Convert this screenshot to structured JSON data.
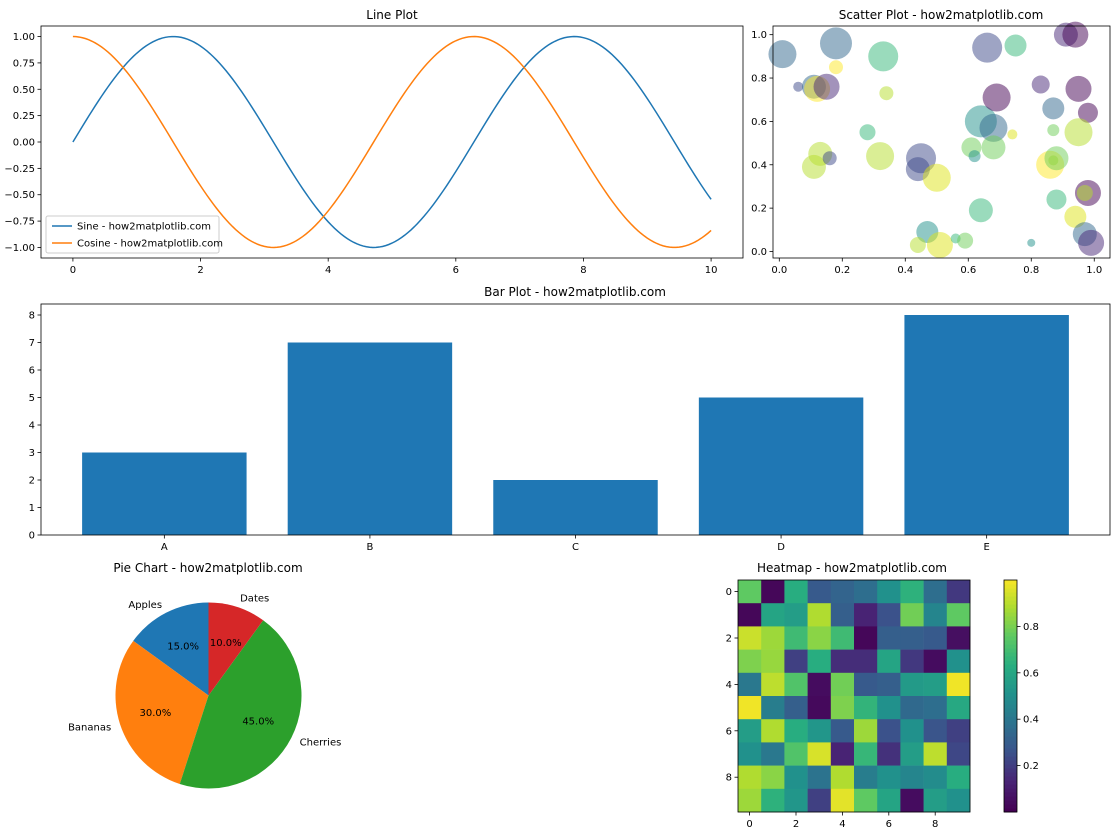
{
  "chart_data": [
    {
      "type": "line",
      "title": "Line Plot",
      "xlabel": "",
      "ylabel": "",
      "xlim": [
        -0.5,
        10.5
      ],
      "ylim": [
        -1.1,
        1.1
      ],
      "xticks": [
        0,
        2,
        4,
        6,
        8,
        10
      ],
      "xtick_labels": [
        "0",
        "2",
        "4",
        "6",
        "8",
        "10"
      ],
      "yticks": [
        -1.0,
        -0.75,
        -0.5,
        -0.25,
        0.0,
        0.25,
        0.5,
        0.75,
        1.0
      ],
      "ytick_labels": [
        "−1.00",
        "−0.75",
        "−0.50",
        "−0.25",
        "0.00",
        "0.25",
        "0.50",
        "0.75",
        "1.00"
      ],
      "grid": false,
      "legend_position": "lower-left",
      "series": [
        {
          "name": "Sine - how2matplotlib.com",
          "function": "sin",
          "color": "#1f77b4",
          "x": [
            0,
            0.5,
            1,
            1.5,
            2,
            2.5,
            3,
            3.5,
            4,
            4.5,
            5,
            5.5,
            6,
            6.5,
            7,
            7.5,
            8,
            8.5,
            9,
            9.5,
            10
          ],
          "y": [
            0,
            0.479,
            0.841,
            0.997,
            0.909,
            0.598,
            0.141,
            -0.351,
            -0.757,
            -0.978,
            -0.959,
            -0.706,
            -0.279,
            0.215,
            0.657,
            0.938,
            0.989,
            0.798,
            0.412,
            -0.075,
            -0.544
          ]
        },
        {
          "name": "Cosine - how2matplotlib.com",
          "function": "cos",
          "color": "#ff7f0e",
          "x": [
            0,
            0.5,
            1,
            1.5,
            2,
            2.5,
            3,
            3.5,
            4,
            4.5,
            5,
            5.5,
            6,
            6.5,
            7,
            7.5,
            8,
            8.5,
            9,
            9.5,
            10
          ],
          "y": [
            1,
            0.878,
            0.54,
            0.071,
            -0.416,
            -0.801,
            -0.99,
            -0.936,
            -0.654,
            -0.211,
            0.284,
            0.709,
            0.96,
            0.977,
            0.754,
            0.347,
            -0.146,
            -0.602,
            -0.911,
            -0.997,
            -0.839
          ]
        }
      ]
    },
    {
      "type": "scatter",
      "title": "Scatter Plot - how2matplotlib.com",
      "xlabel": "",
      "ylabel": "",
      "xlim": [
        -0.02,
        1.05
      ],
      "ylim": [
        -0.03,
        1.04
      ],
      "xticks": [
        0.0,
        0.2,
        0.4,
        0.6,
        0.8,
        1.0
      ],
      "xtick_labels": [
        "0.0",
        "0.2",
        "0.4",
        "0.6",
        "0.8",
        "1.0"
      ],
      "yticks": [
        0.0,
        0.2,
        0.4,
        0.6,
        0.8,
        1.0
      ],
      "ytick_labels": [
        "0.0",
        "0.2",
        "0.4",
        "0.6",
        "0.8",
        "1.0"
      ],
      "grid": false,
      "alpha": 0.5,
      "points": [
        {
          "x": 0.01,
          "y": 0.91,
          "size": 14,
          "color": "#31688e"
        },
        {
          "x": 0.06,
          "y": 0.76,
          "size": 5,
          "color": "#3e4a89"
        },
        {
          "x": 0.11,
          "y": 0.76,
          "size": 12,
          "color": "#31688e"
        },
        {
          "x": 0.12,
          "y": 0.75,
          "size": 13,
          "color": "#fde725"
        },
        {
          "x": 0.15,
          "y": 0.76,
          "size": 13,
          "color": "#482878"
        },
        {
          "x": 0.18,
          "y": 0.96,
          "size": 16,
          "color": "#31688e"
        },
        {
          "x": 0.18,
          "y": 0.85,
          "size": 7,
          "color": "#fde725"
        },
        {
          "x": 0.33,
          "y": 0.9,
          "size": 15,
          "color": "#35b779"
        },
        {
          "x": 0.34,
          "y": 0.73,
          "size": 7,
          "color": "#b5de2b"
        },
        {
          "x": 0.11,
          "y": 0.39,
          "size": 12,
          "color": "#b5de2b"
        },
        {
          "x": 0.13,
          "y": 0.45,
          "size": 12,
          "color": "#b5de2b"
        },
        {
          "x": 0.16,
          "y": 0.43,
          "size": 7,
          "color": "#3e4a89"
        },
        {
          "x": 0.28,
          "y": 0.55,
          "size": 8,
          "color": "#35b779"
        },
        {
          "x": 0.32,
          "y": 0.44,
          "size": 14,
          "color": "#b5de2b"
        },
        {
          "x": 0.44,
          "y": 0.38,
          "size": 12,
          "color": "#3e4a89"
        },
        {
          "x": 0.45,
          "y": 0.43,
          "size": 15,
          "color": "#3e4a89"
        },
        {
          "x": 0.5,
          "y": 0.34,
          "size": 14,
          "color": "#dde318"
        },
        {
          "x": 0.47,
          "y": 0.09,
          "size": 11,
          "color": "#21918c"
        },
        {
          "x": 0.44,
          "y": 0.03,
          "size": 8,
          "color": "#b5de2b"
        },
        {
          "x": 0.51,
          "y": 0.03,
          "size": 13,
          "color": "#dde318"
        },
        {
          "x": 0.56,
          "y": 0.06,
          "size": 5,
          "color": "#35b779"
        },
        {
          "x": 0.59,
          "y": 0.05,
          "size": 8,
          "color": "#6ece58"
        },
        {
          "x": 0.61,
          "y": 0.48,
          "size": 10,
          "color": "#6ece58"
        },
        {
          "x": 0.62,
          "y": 0.44,
          "size": 6,
          "color": "#21918c"
        },
        {
          "x": 0.64,
          "y": 0.6,
          "size": 16,
          "color": "#21918c"
        },
        {
          "x": 0.68,
          "y": 0.57,
          "size": 14,
          "color": "#31688e"
        },
        {
          "x": 0.68,
          "y": 0.48,
          "size": 12,
          "color": "#6ece58"
        },
        {
          "x": 0.69,
          "y": 0.71,
          "size": 14,
          "color": "#440154"
        },
        {
          "x": 0.64,
          "y": 0.19,
          "size": 12,
          "color": "#35b779"
        },
        {
          "x": 0.66,
          "y": 0.94,
          "size": 15,
          "color": "#3e4a89"
        },
        {
          "x": 0.75,
          "y": 0.95,
          "size": 11,
          "color": "#35b779"
        },
        {
          "x": 0.74,
          "y": 0.54,
          "size": 5,
          "color": "#dde318"
        },
        {
          "x": 0.83,
          "y": 0.77,
          "size": 9,
          "color": "#482878"
        },
        {
          "x": 0.87,
          "y": 0.66,
          "size": 11,
          "color": "#31688e"
        },
        {
          "x": 0.87,
          "y": 0.56,
          "size": 6,
          "color": "#6ece58"
        },
        {
          "x": 0.86,
          "y": 0.4,
          "size": 14,
          "color": "#fde725"
        },
        {
          "x": 0.87,
          "y": 0.42,
          "size": 5,
          "color": "#b5de2b"
        },
        {
          "x": 0.88,
          "y": 0.43,
          "size": 12,
          "color": "#6ece58"
        },
        {
          "x": 0.88,
          "y": 0.24,
          "size": 10,
          "color": "#35b779"
        },
        {
          "x": 0.8,
          "y": 0.04,
          "size": 4,
          "color": "#21918c"
        },
        {
          "x": 0.91,
          "y": 1.0,
          "size": 12,
          "color": "#482878"
        },
        {
          "x": 0.94,
          "y": 1.0,
          "size": 13,
          "color": "#440154"
        },
        {
          "x": 0.95,
          "y": 0.75,
          "size": 13,
          "color": "#440154"
        },
        {
          "x": 0.98,
          "y": 0.64,
          "size": 10,
          "color": "#440154"
        },
        {
          "x": 0.95,
          "y": 0.55,
          "size": 14,
          "color": "#b5de2b"
        },
        {
          "x": 0.98,
          "y": 0.27,
          "size": 13,
          "color": "#440154"
        },
        {
          "x": 0.97,
          "y": 0.27,
          "size": 8,
          "color": "#b5de2b"
        },
        {
          "x": 0.94,
          "y": 0.16,
          "size": 11,
          "color": "#dde318"
        },
        {
          "x": 0.97,
          "y": 0.08,
          "size": 12,
          "color": "#31688e"
        },
        {
          "x": 0.99,
          "y": 0.04,
          "size": 13,
          "color": "#482878"
        }
      ]
    },
    {
      "type": "bar",
      "title": "Bar Plot - how2matplotlib.com",
      "xlabel": "",
      "ylabel": "",
      "categories": [
        "A",
        "B",
        "C",
        "D",
        "E"
      ],
      "values": [
        3,
        7,
        2,
        5,
        8
      ],
      "ylim": [
        0,
        8.4
      ],
      "yticks": [
        0,
        1,
        2,
        3,
        4,
        5,
        6,
        7,
        8
      ],
      "color": "#1f77b4",
      "grid": false
    },
    {
      "type": "pie",
      "title": "Pie Chart - how2matplotlib.com",
      "startangle": 90,
      "slices": [
        {
          "label": "Apples",
          "value": 15,
          "pct": "15.0%",
          "color": "#1f77b4"
        },
        {
          "label": "Bananas",
          "value": 30,
          "pct": "30.0%",
          "color": "#ff7f0e"
        },
        {
          "label": "Cherries",
          "value": 45,
          "pct": "45.0%",
          "color": "#2ca02c"
        },
        {
          "label": "Dates",
          "value": 10,
          "pct": "10.0%",
          "color": "#d62728"
        }
      ]
    },
    {
      "type": "heatmap",
      "title": "Heatmap - how2matplotlib.com",
      "colormap": "viridis",
      "xticks": [
        0,
        2,
        4,
        6,
        8
      ],
      "yticks": [
        0,
        2,
        4,
        6,
        8
      ],
      "colorbar_ticks": [
        0.2,
        0.4,
        0.6,
        0.8
      ],
      "colorbar_range": [
        0.0,
        1.0
      ],
      "values": [
        [
          0.75,
          0.02,
          0.62,
          0.28,
          0.32,
          0.36,
          0.5,
          0.64,
          0.36,
          0.18
        ],
        [
          0.02,
          0.58,
          0.55,
          0.88,
          0.3,
          0.12,
          0.25,
          0.78,
          0.45,
          0.75
        ],
        [
          0.92,
          0.85,
          0.68,
          0.82,
          0.68,
          0.02,
          0.3,
          0.3,
          0.28,
          0.05
        ],
        [
          0.8,
          0.84,
          0.2,
          0.62,
          0.15,
          0.15,
          0.58,
          0.18,
          0.04,
          0.5
        ],
        [
          0.4,
          0.9,
          0.72,
          0.04,
          0.78,
          0.28,
          0.3,
          0.54,
          0.55,
          0.98
        ],
        [
          0.98,
          0.42,
          0.3,
          0.03,
          0.8,
          0.65,
          0.5,
          0.34,
          0.36,
          0.6
        ],
        [
          0.55,
          0.88,
          0.62,
          0.52,
          0.28,
          0.85,
          0.25,
          0.5,
          0.26,
          0.2
        ],
        [
          0.5,
          0.4,
          0.72,
          0.94,
          0.12,
          0.66,
          0.16,
          0.55,
          0.9,
          0.22
        ],
        [
          0.88,
          0.82,
          0.5,
          0.38,
          0.88,
          0.42,
          0.5,
          0.45,
          0.48,
          0.62
        ],
        [
          0.85,
          0.64,
          0.52,
          0.2,
          0.96,
          0.75,
          0.58,
          0.04,
          0.55,
          0.5
        ]
      ]
    }
  ]
}
